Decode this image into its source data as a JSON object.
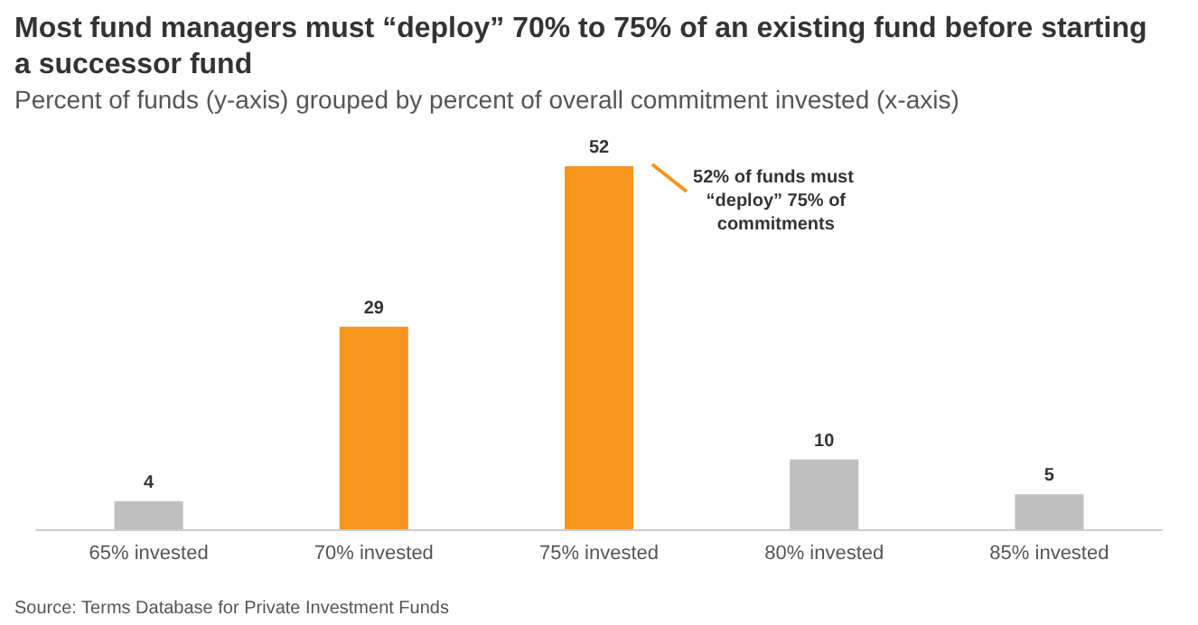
{
  "chart_data": {
    "type": "bar",
    "title": "Most fund managers must “deploy” 70% to 75% of an existing fund before starting a successor fund",
    "subtitle": "Percent of funds (y-axis) grouped by percent of overall commitment invested (x-axis)",
    "categories": [
      "65% invested",
      "70% invested",
      "75% invested",
      "80% invested",
      "85% invested"
    ],
    "values": [
      4,
      29,
      52,
      10,
      5
    ],
    "colors": [
      "#bfbfbf",
      "#f7941d",
      "#f7941d",
      "#bfbfbf",
      "#bfbfbf"
    ],
    "data_labels": true,
    "tick_labels": "x",
    "annotations": [
      "52% of funds must “deploy” 75% of commitments",
      "Source: Terms Database for Private Investment Funds"
    ]
  }
}
